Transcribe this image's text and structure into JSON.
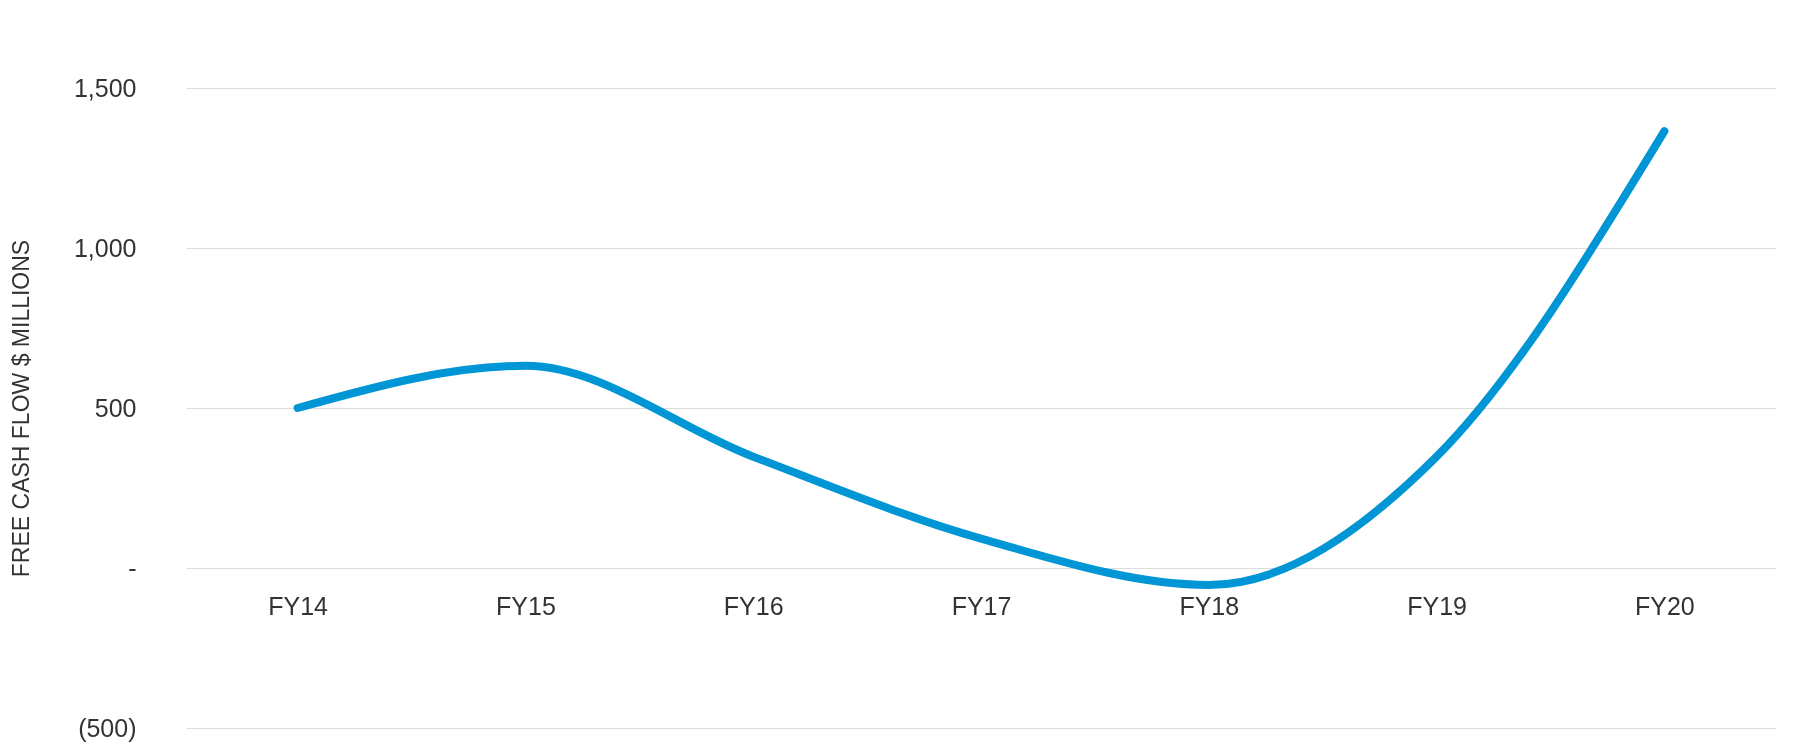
{
  "chart_data": {
    "type": "line",
    "ylabel": "FREE CASH FLOW $ MILLIONS",
    "categories": [
      "FY14",
      "FY15",
      "FY16",
      "FY17",
      "FY18",
      "FY19",
      "FY20"
    ],
    "series": [
      {
        "color": "#0096d6",
        "values": [
          500,
          632,
          348,
          92,
          -53,
          348,
          1365
        ]
      }
    ],
    "ylim": [
      -500,
      1500
    ],
    "yticks": [
      {
        "value": -500,
        "label": "(500)"
      },
      {
        "value": 0,
        "label": "-"
      },
      500,
      {
        "value": 1000,
        "label": "1,000"
      },
      {
        "value": 1500,
        "label": "1,500"
      }
    ],
    "grid": "y",
    "legend": false,
    "marker": "none",
    "line_style": "solid"
  }
}
